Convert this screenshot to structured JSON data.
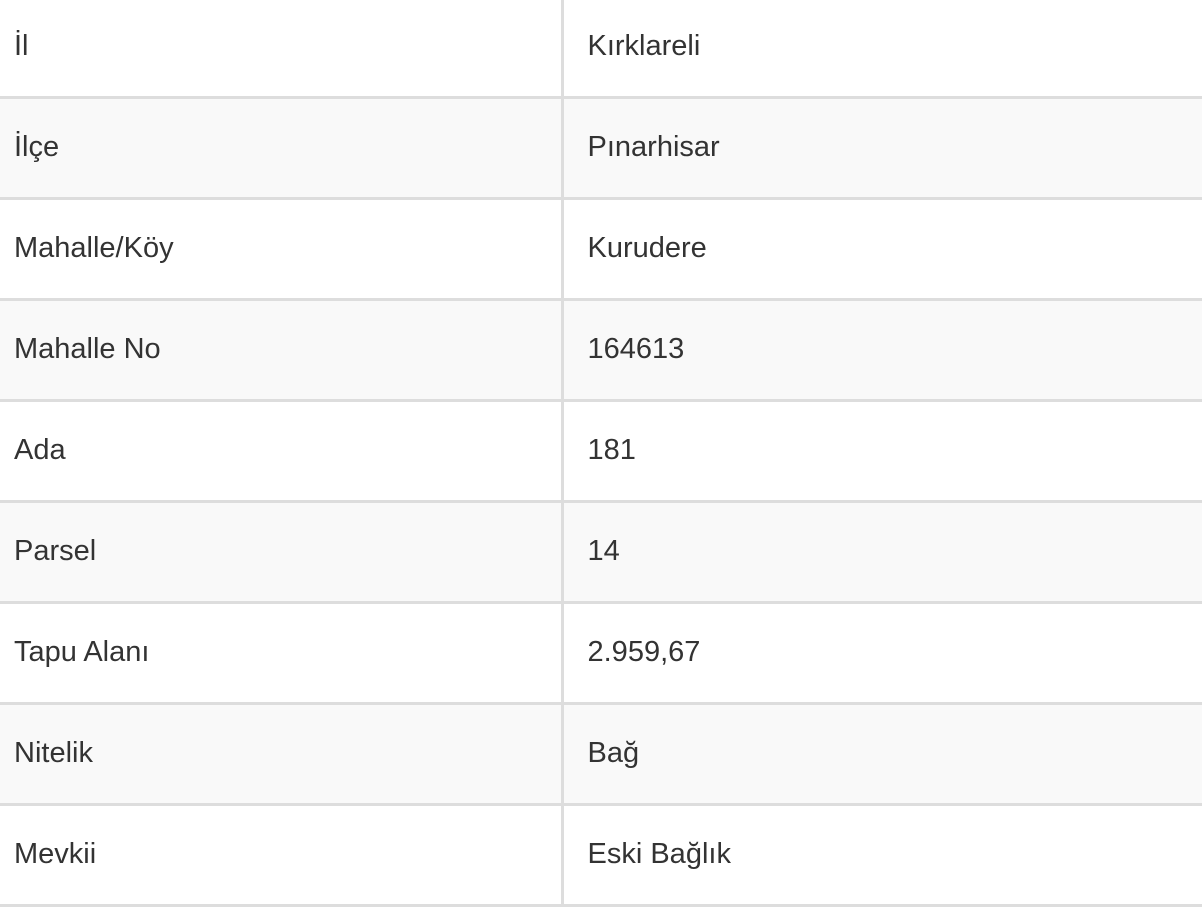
{
  "rows": [
    {
      "label": "İl",
      "value": "Kırklareli"
    },
    {
      "label": "İlçe",
      "value": "Pınarhisar"
    },
    {
      "label": "Mahalle/Köy",
      "value": "Kurudere"
    },
    {
      "label": "Mahalle No",
      "value": "164613"
    },
    {
      "label": "Ada",
      "value": "181"
    },
    {
      "label": "Parsel",
      "value": "14"
    },
    {
      "label": "Tapu Alanı",
      "value": "2.959,67"
    },
    {
      "label": "Nitelik",
      "value": "Bağ"
    },
    {
      "label": "Mevkii",
      "value": "Eski Bağlık"
    }
  ]
}
